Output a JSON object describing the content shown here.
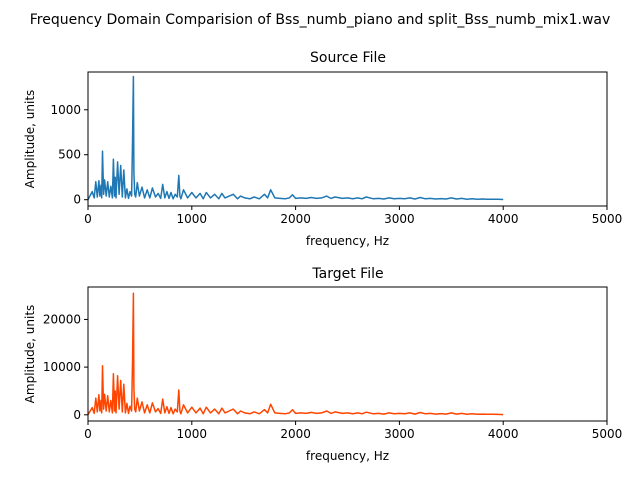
{
  "figure": {
    "suptitle": "Frequency Domain Comparision of Bss_numb_piano and split_Bss_numb_mix1.wav"
  },
  "chart_data": [
    {
      "type": "line",
      "title": "Source File",
      "xlabel": "frequency, Hz",
      "ylabel": "Amplitude, units",
      "xlim": [
        0,
        5000
      ],
      "ylim": [
        -70,
        1420
      ],
      "xticks": [
        0,
        1000,
        2000,
        3000,
        4000,
        5000
      ],
      "yticks": [
        0,
        500,
        1000
      ],
      "grid": false,
      "series": [
        {
          "color": "#1f77b4",
          "x": [
            0,
            40,
            60,
            75,
            90,
            105,
            115,
            125,
            132,
            140,
            150,
            160,
            175,
            190,
            205,
            220,
            235,
            245,
            255,
            262,
            270,
            285,
            300,
            315,
            330,
            345,
            360,
            375,
            390,
            405,
            420,
            430,
            437,
            442,
            450,
            460,
            475,
            495,
            520,
            545,
            570,
            595,
            620,
            650,
            675,
            700,
            720,
            740,
            760,
            780,
            800,
            820,
            840,
            860,
            875,
            885,
            895,
            920,
            960,
            1000,
            1040,
            1080,
            1110,
            1140,
            1180,
            1220,
            1260,
            1290,
            1320,
            1360,
            1400,
            1440,
            1470,
            1510,
            1560,
            1600,
            1650,
            1700,
            1730,
            1760,
            1800,
            1850,
            1900,
            1940,
            1970,
            2000,
            2050,
            2100,
            2150,
            2200,
            2250,
            2300,
            2340,
            2380,
            2450,
            2500,
            2550,
            2600,
            2640,
            2680,
            2750,
            2800,
            2850,
            2900,
            2950,
            3000,
            3050,
            3100,
            3150,
            3200,
            3250,
            3300,
            3350,
            3400,
            3450,
            3500,
            3550,
            3600,
            3650,
            3700,
            3750,
            3800,
            3850,
            3900,
            3950,
            4000
          ],
          "y": [
            0,
            90,
            20,
            200,
            30,
            210,
            40,
            160,
            20,
            540,
            60,
            220,
            40,
            200,
            30,
            150,
            20,
            450,
            40,
            250,
            20,
            420,
            60,
            380,
            30,
            330,
            20,
            120,
            15,
            90,
            40,
            700,
            1370,
            300,
            60,
            30,
            190,
            40,
            140,
            20,
            110,
            20,
            130,
            30,
            70,
            15,
            170,
            20,
            90,
            15,
            80,
            10,
            60,
            30,
            270,
            40,
            10,
            110,
            20,
            80,
            20,
            70,
            10,
            80,
            20,
            60,
            10,
            70,
            20,
            40,
            60,
            10,
            40,
            20,
            10,
            30,
            10,
            60,
            20,
            110,
            20,
            15,
            10,
            20,
            55,
            15,
            20,
            15,
            25,
            15,
            20,
            40,
            15,
            30,
            15,
            20,
            10,
            20,
            10,
            30,
            10,
            15,
            8,
            20,
            10,
            15,
            10,
            20,
            8,
            25,
            10,
            15,
            8,
            12,
            8,
            20,
            8,
            15,
            6,
            10,
            6,
            8,
            5,
            6,
            4,
            2
          ]
        }
      ]
    },
    {
      "type": "line",
      "title": "Target File",
      "xlabel": "frequency, Hz",
      "ylabel": "Amplitude, units",
      "xlim": [
        0,
        5000
      ],
      "ylim": [
        -1300,
        26800
      ],
      "xticks": [
        0,
        1000,
        2000,
        3000,
        4000,
        5000
      ],
      "yticks": [
        0,
        10000,
        20000
      ],
      "grid": false,
      "series": [
        {
          "color": "#ff4500",
          "x": [
            0,
            40,
            60,
            75,
            90,
            105,
            115,
            125,
            132,
            140,
            150,
            160,
            175,
            190,
            205,
            220,
            235,
            245,
            255,
            262,
            270,
            285,
            300,
            315,
            330,
            345,
            360,
            375,
            390,
            405,
            420,
            430,
            437,
            442,
            450,
            460,
            475,
            495,
            520,
            545,
            570,
            595,
            620,
            650,
            675,
            700,
            720,
            740,
            760,
            780,
            800,
            820,
            840,
            860,
            875,
            885,
            895,
            920,
            960,
            1000,
            1040,
            1080,
            1110,
            1140,
            1180,
            1220,
            1260,
            1290,
            1320,
            1360,
            1400,
            1440,
            1470,
            1510,
            1560,
            1600,
            1650,
            1700,
            1730,
            1760,
            1800,
            1850,
            1900,
            1940,
            1970,
            2000,
            2050,
            2100,
            2150,
            2200,
            2250,
            2300,
            2340,
            2380,
            2450,
            2500,
            2550,
            2600,
            2640,
            2680,
            2750,
            2800,
            2850,
            2900,
            2950,
            3000,
            3050,
            3100,
            3150,
            3200,
            3250,
            3300,
            3350,
            3400,
            3450,
            3500,
            3550,
            3600,
            3650,
            3700,
            3750,
            3800,
            3850,
            3900,
            3950,
            4000
          ],
          "y": [
            0,
            1500,
            300,
            3500,
            600,
            4200,
            800,
            3000,
            400,
            10300,
            1200,
            4300,
            800,
            4000,
            600,
            3000,
            400,
            8600,
            800,
            5000,
            400,
            8200,
            1200,
            7200,
            600,
            6400,
            400,
            2400,
            300,
            1800,
            800,
            12000,
            25500,
            5500,
            1200,
            600,
            3500,
            800,
            2700,
            400,
            2100,
            400,
            2500,
            600,
            1300,
            300,
            3300,
            400,
            1700,
            300,
            1500,
            200,
            1200,
            600,
            5200,
            800,
            200,
            2100,
            400,
            1600,
            400,
            1400,
            200,
            1600,
            400,
            1200,
            200,
            1400,
            400,
            800,
            1200,
            200,
            800,
            400,
            200,
            600,
            200,
            1100,
            400,
            2200,
            400,
            300,
            200,
            400,
            1050,
            300,
            400,
            300,
            500,
            300,
            400,
            800,
            300,
            600,
            300,
            400,
            200,
            400,
            200,
            550,
            200,
            300,
            150,
            400,
            200,
            300,
            200,
            400,
            150,
            480,
            200,
            300,
            150,
            250,
            150,
            400,
            150,
            300,
            120,
            200,
            120,
            150,
            100,
            120,
            80,
            40
          ]
        }
      ]
    }
  ]
}
